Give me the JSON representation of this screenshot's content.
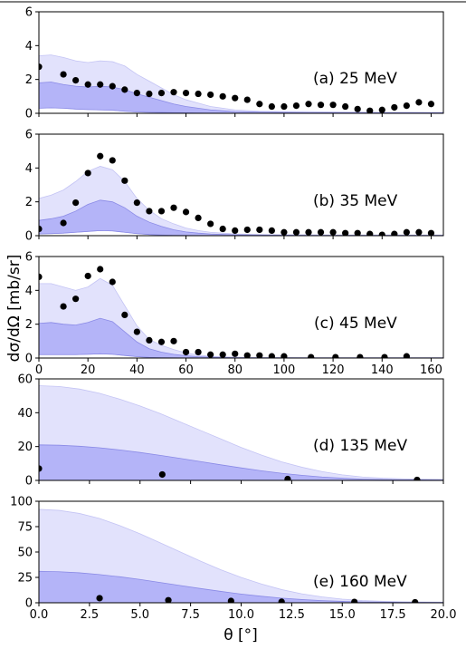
{
  "figure": {
    "ylabel": "dσ/dΩ  [mb/sr]",
    "xlabel_top": "",
    "xlabel_bottom": "θ [°]"
  },
  "colors": {
    "outer_band": "#e2e2fc",
    "inner_band": "#b4b4f8",
    "outer_edge": "#c4c4f4",
    "inner_edge": "#8a8ae6",
    "points": "#000000",
    "axes": "#000000"
  },
  "chart_data": [
    {
      "type": "scatter",
      "label": "(a) 25 MeV",
      "xlim": [
        0,
        165
      ],
      "ylim": [
        0,
        6
      ],
      "xticks": [
        0,
        20,
        40,
        60,
        80,
        100,
        120,
        140,
        160
      ],
      "xtick_labels": [],
      "yticks": [
        0,
        2,
        4,
        6
      ],
      "ytick_labels": [
        "0",
        "2",
        "4",
        "6"
      ],
      "points": {
        "x": [
          0,
          10,
          15,
          20,
          25,
          30,
          35,
          40,
          45,
          50,
          55,
          60,
          65,
          70,
          75,
          80,
          85,
          90,
          95,
          100,
          105,
          110,
          115,
          120,
          125,
          130,
          135,
          140,
          145,
          150,
          155,
          160
        ],
        "y": [
          2.75,
          2.3,
          1.95,
          1.7,
          1.7,
          1.6,
          1.4,
          1.2,
          1.15,
          1.2,
          1.25,
          1.2,
          1.15,
          1.1,
          1.0,
          0.9,
          0.8,
          0.55,
          0.4,
          0.4,
          0.45,
          0.55,
          0.5,
          0.5,
          0.4,
          0.25,
          0.15,
          0.2,
          0.35,
          0.45,
          0.65,
          0.55
        ]
      },
      "bands": {
        "x": [
          0,
          5,
          10,
          15,
          20,
          25,
          30,
          35,
          40,
          45,
          50,
          55,
          60,
          65,
          70,
          75,
          80,
          90,
          100,
          110,
          120,
          130,
          140,
          150,
          160,
          165
        ],
        "outer_hi": [
          3.4,
          3.45,
          3.3,
          3.1,
          3.0,
          3.1,
          3.05,
          2.8,
          2.3,
          1.9,
          1.5,
          1.1,
          0.8,
          0.6,
          0.4,
          0.3,
          0.2,
          0.12,
          0.1,
          0.1,
          0.08,
          0.07,
          0.06,
          0.06,
          0.05,
          0.05
        ],
        "inner_hi": [
          1.8,
          1.85,
          1.7,
          1.6,
          1.55,
          1.6,
          1.55,
          1.4,
          1.15,
          0.95,
          0.75,
          0.55,
          0.4,
          0.3,
          0.2,
          0.15,
          0.1,
          0.07,
          0.05,
          0.04,
          0.04,
          0.03,
          0.03,
          0.03,
          0.03,
          0.03
        ],
        "inner_lo": [
          0.3,
          0.32,
          0.3,
          0.25,
          0.22,
          0.2,
          0.18,
          0.12,
          0.08,
          0.06,
          0.05,
          0.04,
          0.03,
          0.02,
          0.01,
          0.01,
          0.0,
          0.0,
          0.0,
          0.0,
          0.0,
          0.0,
          0.0,
          0.0,
          0.0,
          0.0
        ]
      }
    },
    {
      "type": "scatter",
      "label": "(b) 35 MeV",
      "xlim": [
        0,
        165
      ],
      "ylim": [
        0,
        6
      ],
      "xticks": [
        0,
        20,
        40,
        60,
        80,
        100,
        120,
        140,
        160
      ],
      "xtick_labels": [],
      "yticks": [
        0,
        2,
        4,
        6
      ],
      "ytick_labels": [
        "0",
        "2",
        "4",
        "6"
      ],
      "points": {
        "x": [
          0,
          10,
          15,
          20,
          25,
          30,
          35,
          40,
          45,
          50,
          55,
          60,
          65,
          70,
          75,
          80,
          85,
          90,
          95,
          100,
          105,
          110,
          115,
          120,
          125,
          130,
          135,
          140,
          145,
          150,
          155,
          160
        ],
        "y": [
          0.4,
          0.75,
          1.95,
          3.7,
          4.7,
          4.45,
          3.25,
          1.95,
          1.45,
          1.45,
          1.65,
          1.4,
          1.05,
          0.7,
          0.4,
          0.3,
          0.35,
          0.35,
          0.3,
          0.2,
          0.2,
          0.2,
          0.2,
          0.2,
          0.15,
          0.15,
          0.1,
          0.05,
          0.1,
          0.2,
          0.2,
          0.15
        ]
      },
      "bands": {
        "x": [
          0,
          5,
          10,
          15,
          20,
          25,
          30,
          35,
          40,
          45,
          50,
          55,
          60,
          65,
          70,
          75,
          80,
          90,
          100,
          110,
          120,
          130,
          140,
          150,
          160,
          165
        ],
        "outer_hi": [
          2.2,
          2.4,
          2.7,
          3.2,
          3.8,
          4.1,
          3.9,
          3.2,
          2.2,
          1.5,
          1.0,
          0.7,
          0.45,
          0.3,
          0.2,
          0.15,
          0.1,
          0.07,
          0.05,
          0.05,
          0.04,
          0.04,
          0.04,
          0.04,
          0.04,
          0.04
        ],
        "inner_hi": [
          0.9,
          1.0,
          1.15,
          1.45,
          1.85,
          2.1,
          2.0,
          1.65,
          1.15,
          0.8,
          0.55,
          0.35,
          0.22,
          0.15,
          0.1,
          0.07,
          0.05,
          0.03,
          0.03,
          0.02,
          0.02,
          0.02,
          0.02,
          0.02,
          0.02,
          0.02
        ],
        "inner_lo": [
          0.1,
          0.12,
          0.15,
          0.2,
          0.25,
          0.3,
          0.28,
          0.2,
          0.12,
          0.07,
          0.04,
          0.02,
          0.01,
          0.0,
          0.0,
          0.0,
          0.0,
          0.0,
          0.0,
          0.0,
          0.0,
          0.0,
          0.0,
          0.0,
          0.0,
          0.0
        ]
      }
    },
    {
      "type": "scatter",
      "label": "(c) 45 MeV",
      "xlim": [
        0,
        165
      ],
      "ylim": [
        0,
        6
      ],
      "xticks": [
        0,
        20,
        40,
        60,
        80,
        100,
        120,
        140,
        160
      ],
      "xtick_labels": [
        "0",
        "20",
        "40",
        "60",
        "80",
        "100",
        "120",
        "140",
        "160"
      ],
      "yticks": [
        0,
        2,
        4,
        6
      ],
      "ytick_labels": [
        "0",
        "2",
        "4",
        "6"
      ],
      "points": {
        "x": [
          0,
          10,
          15,
          20,
          25,
          30,
          35,
          40,
          45,
          50,
          55,
          60,
          65,
          70,
          75,
          80,
          85,
          90,
          95,
          100,
          111,
          121,
          131,
          141,
          150
        ],
        "y": [
          4.8,
          3.05,
          3.5,
          4.85,
          5.25,
          4.5,
          2.55,
          1.55,
          1.05,
          0.95,
          1.0,
          0.35,
          0.35,
          0.2,
          0.2,
          0.25,
          0.15,
          0.15,
          0.1,
          0.1,
          0.05,
          0.05,
          0.05,
          0.05,
          0.1
        ]
      },
      "bands": {
        "x": [
          0,
          5,
          10,
          15,
          20,
          25,
          30,
          35,
          40,
          45,
          50,
          55,
          60,
          65,
          70,
          75,
          80,
          90,
          100,
          110,
          120,
          130,
          140,
          150,
          160,
          165
        ],
        "outer_hi": [
          4.4,
          4.4,
          4.2,
          4.0,
          4.2,
          4.7,
          4.3,
          3.1,
          1.9,
          1.1,
          0.75,
          0.5,
          0.3,
          0.18,
          0.1,
          0.07,
          0.05,
          0.03,
          0.03,
          0.02,
          0.02,
          0.02,
          0.02,
          0.02,
          0.02,
          0.02
        ],
        "inner_hi": [
          2.05,
          2.1,
          2.0,
          1.95,
          2.1,
          2.35,
          2.15,
          1.55,
          0.95,
          0.55,
          0.35,
          0.22,
          0.13,
          0.08,
          0.05,
          0.03,
          0.02,
          0.01,
          0.01,
          0.01,
          0.01,
          0.01,
          0.01,
          0.01,
          0.01,
          0.01
        ],
        "inner_lo": [
          0.2,
          0.2,
          0.2,
          0.2,
          0.22,
          0.25,
          0.22,
          0.15,
          0.08,
          0.04,
          0.02,
          0.01,
          0.0,
          0.0,
          0.0,
          0.0,
          0.0,
          0.0,
          0.0,
          0.0,
          0.0,
          0.0,
          0.0,
          0.0,
          0.0,
          0.0
        ]
      }
    },
    {
      "type": "scatter",
      "label": "(d) 135 MeV",
      "xlim": [
        0,
        20
      ],
      "ylim": [
        0,
        60
      ],
      "xticks": [
        0,
        2.5,
        5,
        7.5,
        10,
        12.5,
        15,
        17.5,
        20
      ],
      "xtick_labels": [],
      "yticks": [
        0,
        20,
        40,
        60
      ],
      "ytick_labels": [
        "0",
        "20",
        "40",
        "60"
      ],
      "points": {
        "x": [
          0,
          6.1,
          12.3,
          18.7
        ],
        "y": [
          7.0,
          3.5,
          0.8,
          0.3
        ]
      },
      "bands": {
        "x": [
          0,
          1,
          2,
          3,
          4,
          5,
          6,
          7,
          8,
          9,
          10,
          11,
          12,
          13,
          14,
          15,
          16,
          17,
          18,
          19,
          20
        ],
        "outer_hi": [
          56,
          55.5,
          54,
          51.5,
          48,
          44,
          39.5,
          34.5,
          29.5,
          24.5,
          19.5,
          15,
          11,
          7.8,
          5.2,
          3.3,
          2.0,
          1.3,
          0.9,
          0.7,
          0.6
        ],
        "inner_hi": [
          21,
          20.8,
          20.2,
          19.3,
          18,
          16.5,
          14.8,
          13,
          11.1,
          9.2,
          7.4,
          5.7,
          4.2,
          3.0,
          2.0,
          1.3,
          0.8,
          0.5,
          0.35,
          0.3,
          0.25
        ],
        "inner_lo": [
          0,
          0,
          0,
          0,
          0,
          0,
          0,
          0,
          0,
          0,
          0,
          0,
          0,
          0,
          0,
          0,
          0,
          0,
          0,
          0,
          0
        ]
      }
    },
    {
      "type": "scatter",
      "label": "(e) 160 MeV",
      "xlim": [
        0,
        20
      ],
      "ylim": [
        0,
        100
      ],
      "xticks": [
        0,
        2.5,
        5,
        7.5,
        10,
        12.5,
        15,
        17.5,
        20
      ],
      "xtick_labels": [
        "0.0",
        "2.5",
        "5.0",
        "7.5",
        "10.0",
        "12.5",
        "15.0",
        "17.5",
        "20.0"
      ],
      "yticks": [
        0,
        25,
        50,
        75,
        100
      ],
      "ytick_labels": [
        "0",
        "25",
        "50",
        "75",
        "100"
      ],
      "points": {
        "x": [
          3.0,
          6.4,
          9.5,
          12.0,
          15.6,
          18.6
        ],
        "y": [
          4.5,
          2.5,
          1.8,
          1.0,
          0.8,
          0.5
        ]
      },
      "bands": {
        "x": [
          0,
          1,
          2,
          3,
          4,
          5,
          6,
          7,
          8,
          9,
          10,
          11,
          12,
          13,
          14,
          15,
          16,
          17,
          18,
          19,
          20
        ],
        "outer_hi": [
          92,
          91,
          88,
          83,
          76,
          68,
          59,
          50,
          41,
          32.5,
          25,
          18.5,
          13,
          8.8,
          5.8,
          3.6,
          2.2,
          1.4,
          1.0,
          0.8,
          0.7
        ],
        "inner_hi": [
          31,
          30.6,
          29.5,
          27.8,
          25.6,
          23,
          20,
          17,
          14,
          11.2,
          8.6,
          6.4,
          4.6,
          3.2,
          2.1,
          1.4,
          0.9,
          0.6,
          0.45,
          0.4,
          0.35
        ],
        "inner_lo": [
          0,
          0,
          0,
          0,
          0,
          0,
          0,
          0,
          0,
          0,
          0,
          0,
          0,
          0,
          0,
          0,
          0,
          0,
          0,
          0,
          0
        ]
      }
    }
  ]
}
